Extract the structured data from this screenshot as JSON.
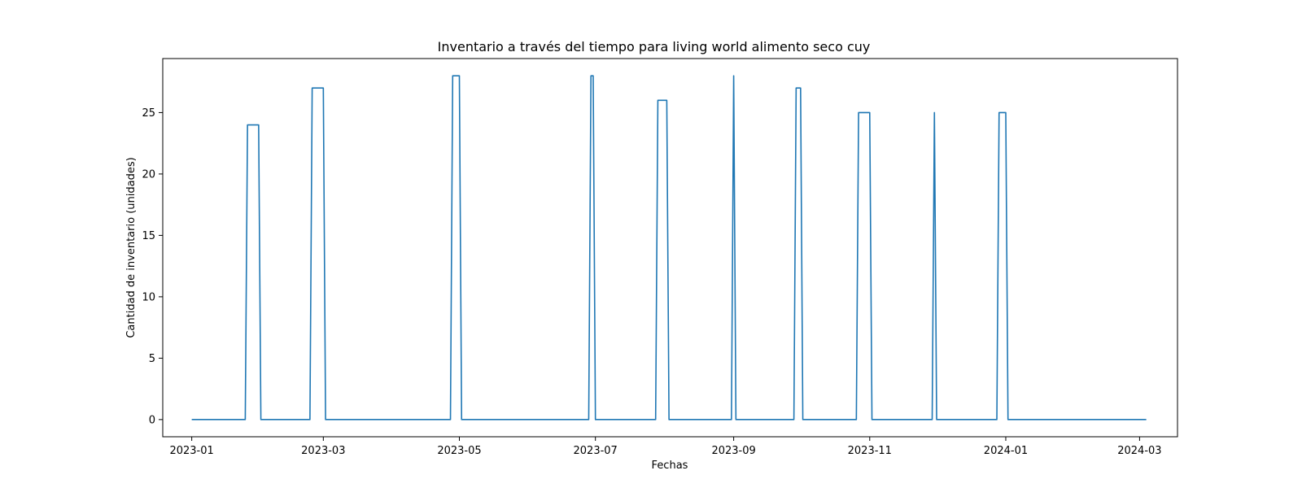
{
  "chart_data": {
    "type": "line",
    "title": "Inventario a través del tiempo para living world alimento seco cuy",
    "xlabel": "Fechas",
    "ylabel": "Cantidad de inventario (unidades)",
    "xlim": [
      "2022-12-19",
      "2024-03-18"
    ],
    "ylim": [
      -1.4,
      29.4
    ],
    "xticks": [
      {
        "date": "2023-01-01",
        "label": "2023-01"
      },
      {
        "date": "2023-03-01",
        "label": "2023-03"
      },
      {
        "date": "2023-05-01",
        "label": "2023-05"
      },
      {
        "date": "2023-07-01",
        "label": "2023-07"
      },
      {
        "date": "2023-09-01",
        "label": "2023-09"
      },
      {
        "date": "2023-11-01",
        "label": "2023-11"
      },
      {
        "date": "2024-01-01",
        "label": "2024-01"
      },
      {
        "date": "2024-03-01",
        "label": "2024-03"
      }
    ],
    "yticks": [
      0,
      5,
      10,
      15,
      20,
      25
    ],
    "grid": false,
    "series": [
      {
        "color": "#1f77b4",
        "points": [
          [
            "2023-01-01",
            0
          ],
          [
            "2023-01-25",
            0
          ],
          [
            "2023-01-26",
            24
          ],
          [
            "2023-01-31",
            24
          ],
          [
            "2023-02-01",
            0
          ],
          [
            "2023-02-23",
            0
          ],
          [
            "2023-02-24",
            27
          ],
          [
            "2023-03-01",
            27
          ],
          [
            "2023-03-02",
            0
          ],
          [
            "2023-04-27",
            0
          ],
          [
            "2023-04-28",
            28
          ],
          [
            "2023-05-01",
            28
          ],
          [
            "2023-05-02",
            0
          ],
          [
            "2023-06-28",
            0
          ],
          [
            "2023-06-29",
            28
          ],
          [
            "2023-06-30",
            28
          ],
          [
            "2023-07-01",
            0
          ],
          [
            "2023-07-28",
            0
          ],
          [
            "2023-07-29",
            26
          ],
          [
            "2023-08-02",
            26
          ],
          [
            "2023-08-03",
            0
          ],
          [
            "2023-08-31",
            0
          ],
          [
            "2023-09-01",
            28
          ],
          [
            "2023-09-02",
            0
          ],
          [
            "2023-09-28",
            0
          ],
          [
            "2023-09-29",
            27
          ],
          [
            "2023-10-01",
            27
          ],
          [
            "2023-10-02",
            0
          ],
          [
            "2023-10-26",
            0
          ],
          [
            "2023-10-27",
            25
          ],
          [
            "2023-11-01",
            25
          ],
          [
            "2023-11-02",
            0
          ],
          [
            "2023-11-29",
            0
          ],
          [
            "2023-11-30",
            25
          ],
          [
            "2023-12-01",
            0
          ],
          [
            "2023-12-28",
            0
          ],
          [
            "2023-12-29",
            25
          ],
          [
            "2024-01-01",
            25
          ],
          [
            "2024-01-02",
            0
          ],
          [
            "2024-03-04",
            0
          ]
        ]
      }
    ]
  }
}
